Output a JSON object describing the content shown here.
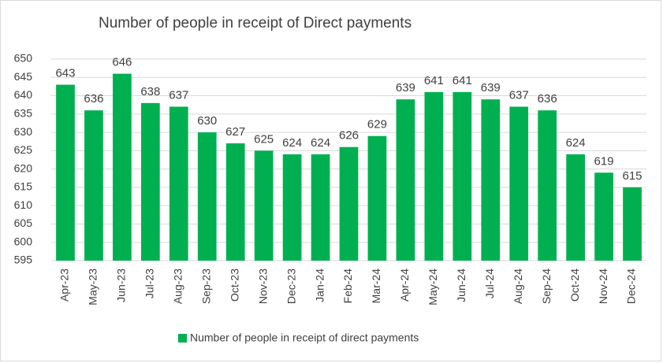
{
  "chart_data": {
    "type": "bar",
    "title": "Number of people in receipt of Direct payments",
    "categories": [
      "Apr-23",
      "May-23",
      "Jun-23",
      "Jul-23",
      "Aug-23",
      "Sep-23",
      "Oct-23",
      "Nov-23",
      "Dec-23",
      "Jan-24",
      "Feb-24",
      "Mar-24",
      "Apr-24",
      "May-24",
      "Jun-24",
      "Jul-24",
      "Aug-24",
      "Sep-24",
      "Oct-24",
      "Nov-24",
      "Dec-24"
    ],
    "series": [
      {
        "name": "Number of people in receipt of direct payments",
        "color": "#00b050",
        "values": [
          643,
          636,
          646,
          638,
          637,
          630,
          627,
          625,
          624,
          624,
          626,
          629,
          639,
          641,
          641,
          639,
          637,
          636,
          624,
          619,
          615
        ]
      }
    ],
    "ylim": [
      595,
      650
    ],
    "yticks": [
      595,
      600,
      605,
      610,
      615,
      620,
      625,
      630,
      635,
      640,
      645,
      650
    ],
    "grid": true,
    "legend": "bottom"
  }
}
